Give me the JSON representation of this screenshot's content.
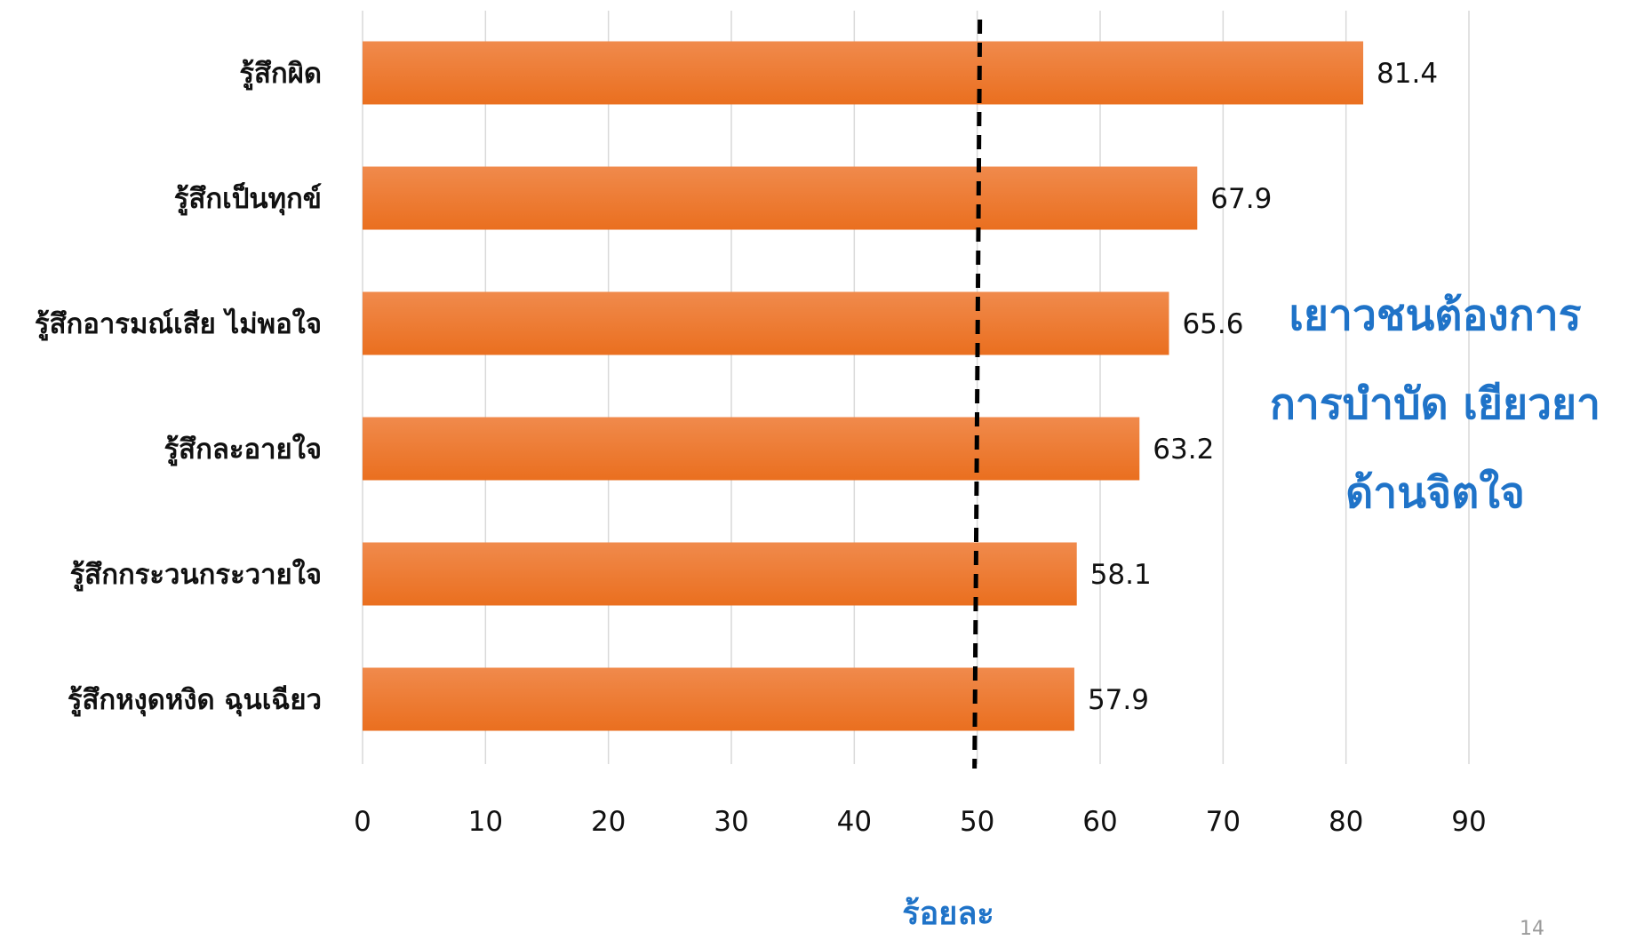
{
  "chart_data": {
    "type": "bar",
    "orientation": "horizontal",
    "categories": [
      "รู้สึกผิด",
      "รู้สึกเป็นทุกข์",
      "รู้สึกอารมณ์เสีย ไม่พอใจ",
      "รู้สึกละอายใจ",
      "รู้สึกกระวนกระวายใจ",
      "รู้สึกหงุดหงิด ฉุนเฉียว"
    ],
    "values": [
      81.4,
      67.9,
      65.6,
      63.2,
      58.1,
      57.9
    ],
    "data_labels": [
      "81.4",
      "67.9",
      "65.6",
      "63.2",
      "58.1",
      "57.9"
    ],
    "xlabel": "ร้อยละ",
    "xlim": [
      0,
      90
    ],
    "xticks": [
      "0",
      "10",
      "20",
      "30",
      "40",
      "50",
      "60",
      "70",
      "80",
      "90"
    ],
    "reference_line": 50,
    "grid": "vertical",
    "bar_color": "#ea6f1f",
    "bar_color_light": "#f08a4c"
  },
  "callout": {
    "lines": [
      "เยาวชนต้องการ",
      "การบำบัด เยียวยา",
      "ด้านจิตใจ"
    ],
    "color": "#1f73c8"
  },
  "slide_number": "14",
  "colors": {
    "axis_title": "#1f73c8",
    "gridline": "#d9d9d9",
    "reference_line": "#000000"
  }
}
